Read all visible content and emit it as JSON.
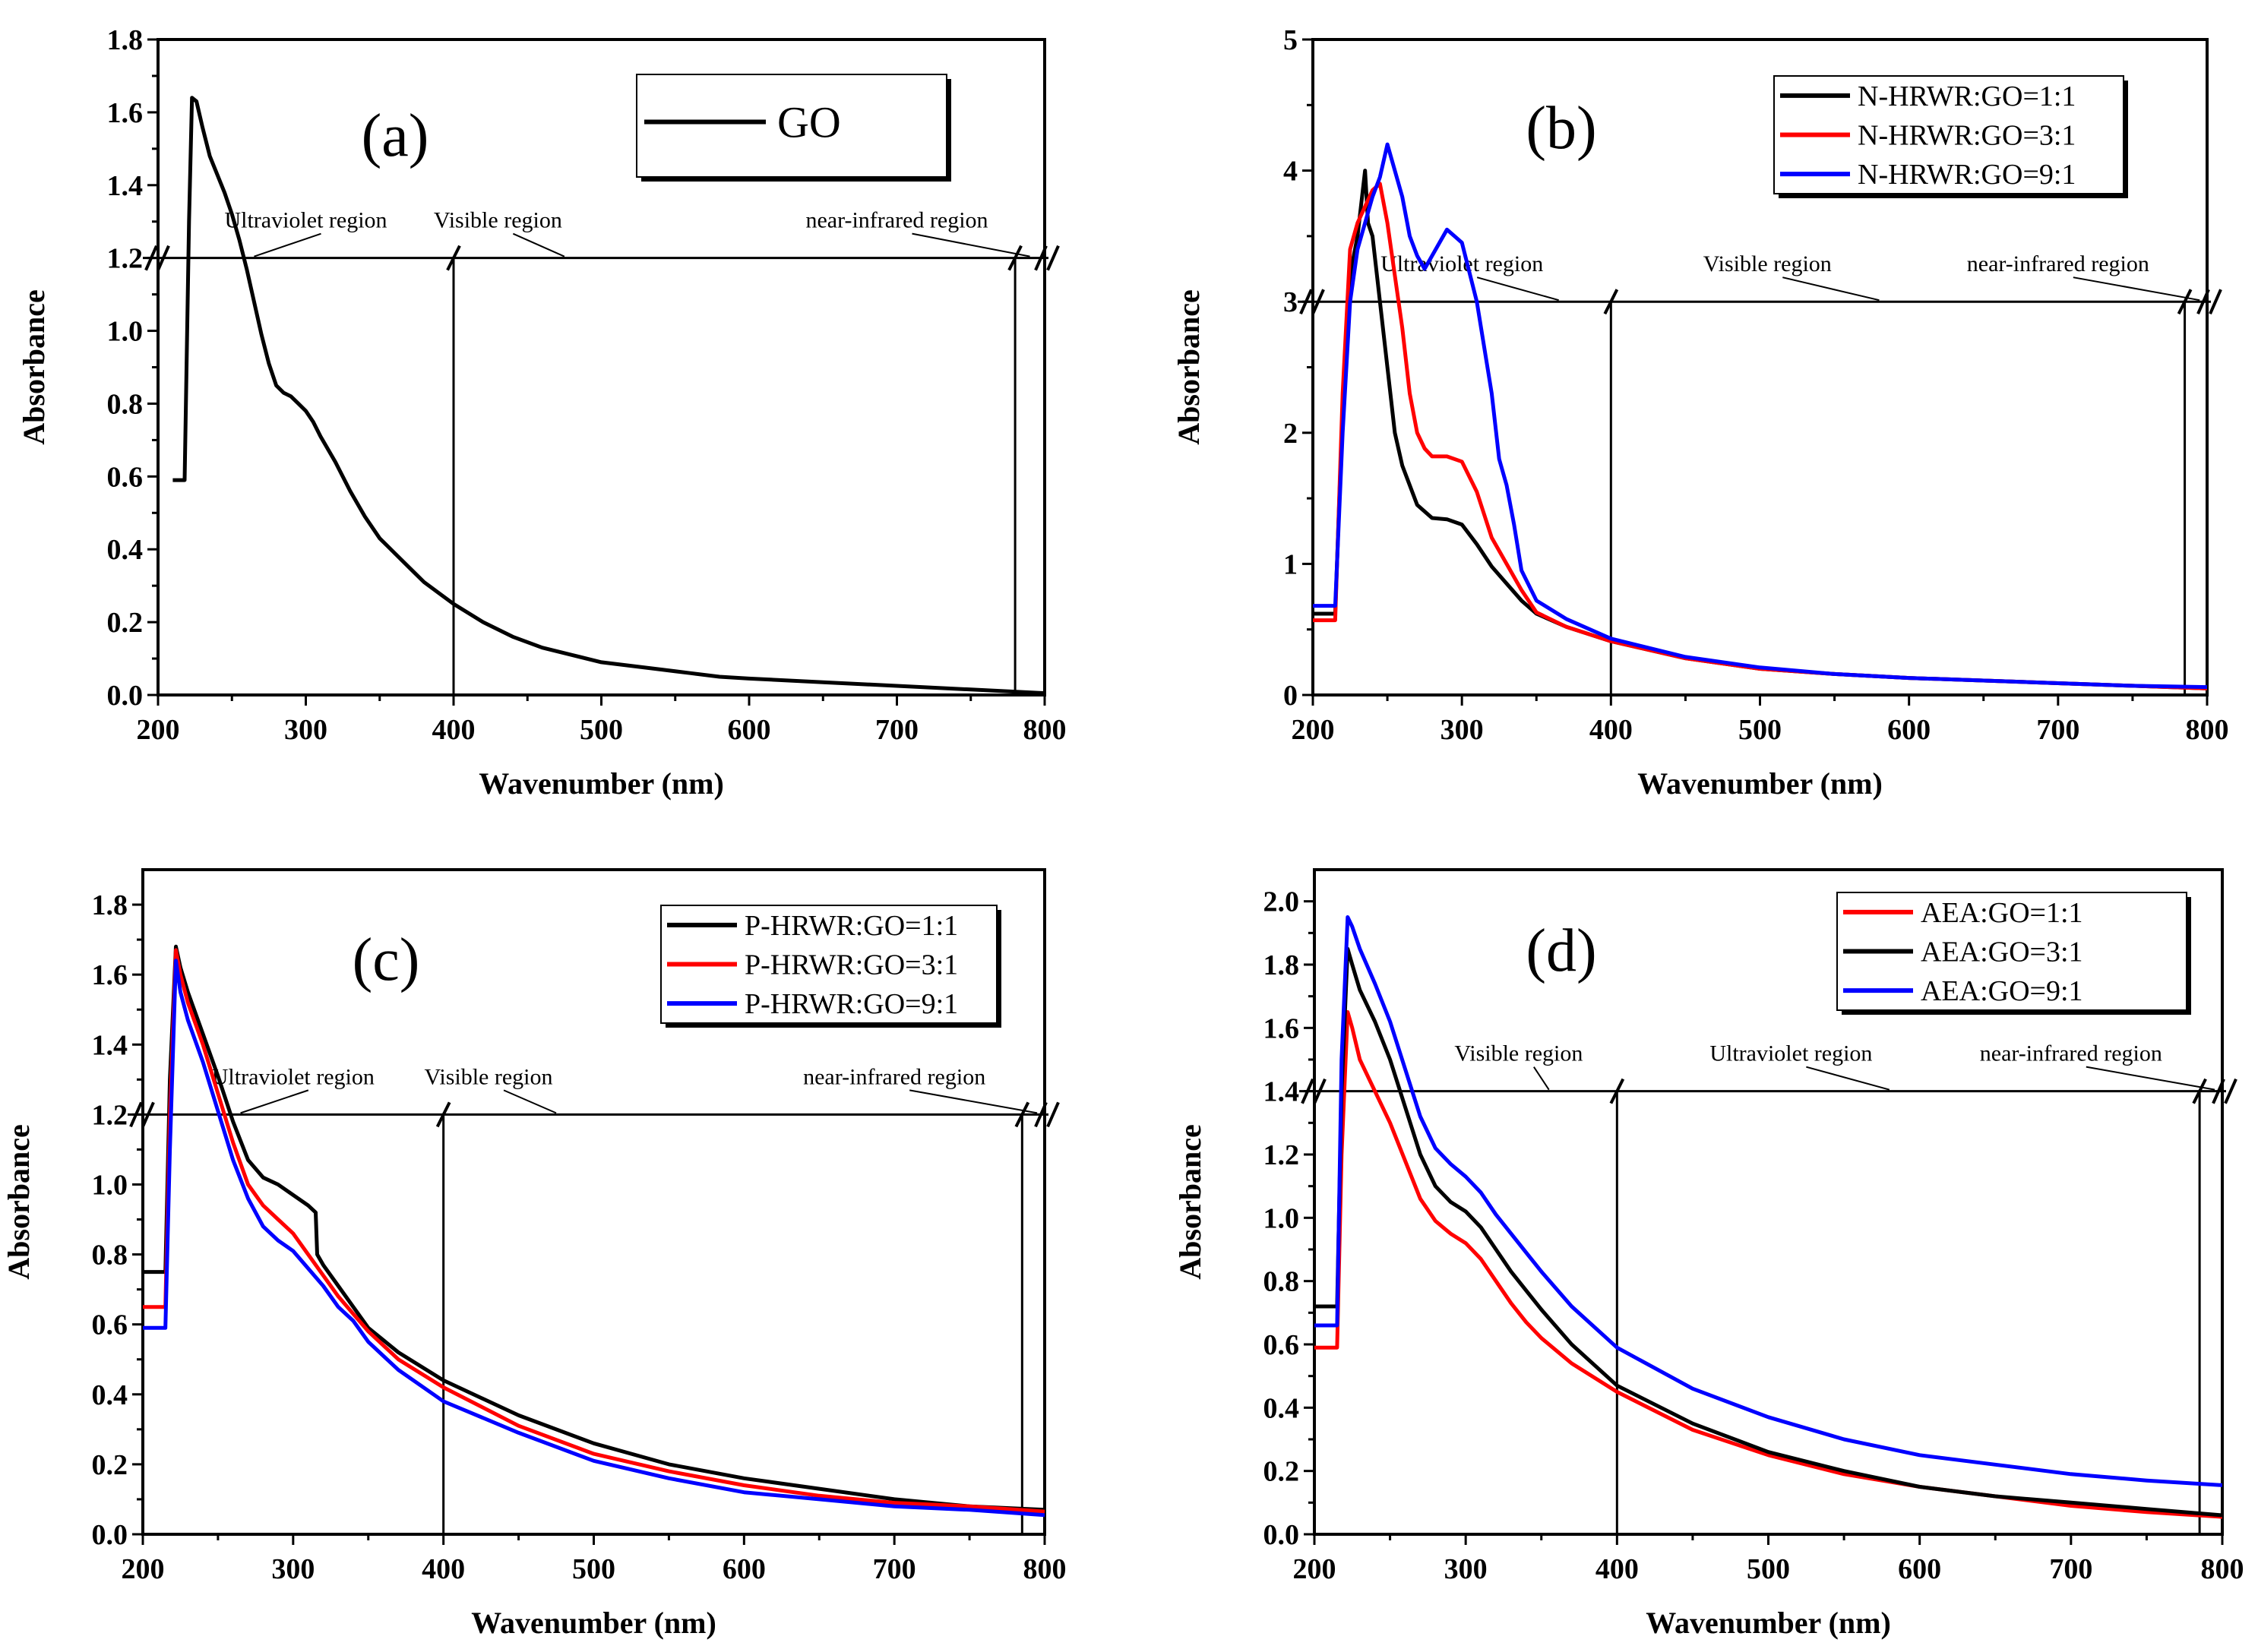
{
  "chart_data": [
    {
      "panel": "(a)",
      "type": "line",
      "xlabel": "Wavenumber (nm)",
      "ylabel": "Absorbance",
      "xlim": [
        200,
        800
      ],
      "ylim": [
        0,
        1.8
      ],
      "xticks": [
        "200",
        "300",
        "400",
        "500",
        "600",
        "700",
        "800"
      ],
      "yticks": [
        "0.0",
        "0.2",
        "0.4",
        "0.6",
        "0.8",
        "1.0",
        "1.2",
        "1.4",
        "1.6",
        "1.8"
      ],
      "regions": {
        "line_y": 1.2,
        "boundaries": [
          400,
          780
        ],
        "labels": [
          {
            "text": "Ultraviolet region",
            "x": 300,
            "arrow_to": 265
          },
          {
            "text": "Visible region",
            "x": 430,
            "arrow_to": 475
          },
          {
            "text": "near-infrared region",
            "x": 700,
            "arrow_to": 790
          }
        ]
      },
      "legend": {
        "position": "top-right",
        "entries": [
          "GO"
        ]
      },
      "series": [
        {
          "name": "GO",
          "color": "#000000",
          "x": [
            210,
            214,
            214,
            218,
            221,
            223,
            226,
            230,
            235,
            240,
            245,
            250,
            255,
            260,
            265,
            270,
            275,
            280,
            285,
            290,
            295,
            300,
            305,
            310,
            320,
            330,
            340,
            350,
            360,
            370,
            380,
            390,
            400,
            420,
            440,
            460,
            480,
            500,
            520,
            540,
            560,
            580,
            600,
            650,
            700,
            750,
            800
          ],
          "y": [
            0.59,
            0.59,
            0.59,
            0.59,
            1.3,
            1.64,
            1.63,
            1.56,
            1.48,
            1.43,
            1.38,
            1.32,
            1.25,
            1.17,
            1.08,
            0.99,
            0.91,
            0.85,
            0.83,
            0.82,
            0.8,
            0.78,
            0.75,
            0.71,
            0.64,
            0.56,
            0.49,
            0.43,
            0.39,
            0.35,
            0.31,
            0.28,
            0.25,
            0.2,
            0.16,
            0.13,
            0.11,
            0.09,
            0.08,
            0.07,
            0.06,
            0.05,
            0.045,
            0.035,
            0.025,
            0.015,
            0.005
          ]
        }
      ]
    },
    {
      "panel": "(b)",
      "type": "line",
      "xlabel": "Wavenumber (nm)",
      "ylabel": "Absorbance",
      "xlim": [
        200,
        800
      ],
      "ylim": [
        0,
        5
      ],
      "xticks": [
        "200",
        "300",
        "400",
        "500",
        "600",
        "700",
        "800"
      ],
      "yticks": [
        "0",
        "1",
        "2",
        "3",
        "4",
        "5"
      ],
      "regions": {
        "line_y": 3.0,
        "boundaries": [
          400,
          785
        ],
        "labels": [
          {
            "text": "Ultraviolet region",
            "x": 300,
            "arrow_to": 365
          },
          {
            "text": "Visible region",
            "x": 505,
            "arrow_to": 580
          },
          {
            "text": "near-infrared region",
            "x": 700,
            "arrow_to": 795
          }
        ]
      },
      "legend": {
        "position": "top-right",
        "entries": [
          "N-HRWR:GO=1:1",
          "N-HRWR:GO=3:1",
          "N-HRWR:GO=9:1"
        ]
      },
      "series": [
        {
          "name": "N-HRWR:GO=1:1",
          "color": "#000000",
          "x": [
            200,
            215,
            215,
            220,
            225,
            230,
            235,
            237,
            240,
            245,
            250,
            255,
            260,
            270,
            280,
            290,
            300,
            310,
            320,
            330,
            340,
            350,
            370,
            400,
            450,
            500,
            550,
            600,
            650,
            700,
            750,
            800
          ],
          "y": [
            0.62,
            0.62,
            0.62,
            2.2,
            3.2,
            3.5,
            4.0,
            3.6,
            3.5,
            3.0,
            2.5,
            2.0,
            1.75,
            1.45,
            1.35,
            1.34,
            1.3,
            1.15,
            0.98,
            0.85,
            0.72,
            0.62,
            0.52,
            0.41,
            0.28,
            0.2,
            0.16,
            0.13,
            0.11,
            0.09,
            0.07,
            0.05
          ]
        },
        {
          "name": "N-HRWR:GO=3:1",
          "color": "#ff0000",
          "x": [
            200,
            215,
            215,
            220,
            225,
            230,
            240,
            245,
            250,
            255,
            260,
            265,
            270,
            275,
            280,
            290,
            300,
            310,
            320,
            330,
            340,
            350,
            370,
            400,
            450,
            500,
            550,
            600,
            650,
            700,
            750,
            800
          ],
          "y": [
            0.57,
            0.57,
            0.57,
            2.3,
            3.4,
            3.6,
            3.85,
            3.9,
            3.6,
            3.2,
            2.8,
            2.3,
            2.0,
            1.88,
            1.82,
            1.82,
            1.78,
            1.55,
            1.2,
            1.0,
            0.8,
            0.63,
            0.52,
            0.41,
            0.28,
            0.2,
            0.16,
            0.13,
            0.11,
            0.09,
            0.07,
            0.05
          ]
        },
        {
          "name": "N-HRWR:GO=9:1",
          "color": "#0000ff",
          "x": [
            200,
            215,
            215,
            220,
            225,
            230,
            240,
            245,
            250,
            255,
            260,
            265,
            270,
            275,
            280,
            285,
            290,
            295,
            300,
            310,
            320,
            325,
            330,
            335,
            340,
            350,
            370,
            400,
            450,
            500,
            550,
            600,
            650,
            700,
            750,
            800
          ],
          "y": [
            0.68,
            0.68,
            0.68,
            2.0,
            3.0,
            3.4,
            3.8,
            3.95,
            4.2,
            4.0,
            3.8,
            3.5,
            3.35,
            3.25,
            3.35,
            3.45,
            3.55,
            3.5,
            3.45,
            3.0,
            2.3,
            1.8,
            1.6,
            1.3,
            0.95,
            0.72,
            0.58,
            0.43,
            0.29,
            0.21,
            0.16,
            0.13,
            0.11,
            0.09,
            0.07,
            0.06
          ]
        }
      ]
    },
    {
      "panel": "(c)",
      "type": "line",
      "xlabel": "Wavenumber (nm)",
      "ylabel": "Absorbance",
      "xlim": [
        200,
        800
      ],
      "ylim": [
        0,
        1.9
      ],
      "xticks": [
        "200",
        "300",
        "400",
        "500",
        "600",
        "700",
        "800"
      ],
      "yticks": [
        "0.0",
        "0.2",
        "0.4",
        "0.6",
        "0.8",
        "1.0",
        "1.2",
        "1.4",
        "1.6",
        "1.8"
      ],
      "regions": {
        "line_y": 1.2,
        "boundaries": [
          400,
          785
        ],
        "labels": [
          {
            "text": "Ultraviolet region",
            "x": 300,
            "arrow_to": 265
          },
          {
            "text": "Visible region",
            "x": 430,
            "arrow_to": 475
          },
          {
            "text": "near-infrared region",
            "x": 700,
            "arrow_to": 795
          }
        ]
      },
      "legend": {
        "position": "top-right",
        "entries": [
          "P-HRWR:GO=1:1",
          "P-HRWR:GO=3:1",
          "P-HRWR:GO=9:1"
        ]
      },
      "series": [
        {
          "name": "P-HRWR:GO=1:1",
          "color": "#000000",
          "x": [
            200,
            215,
            215,
            218,
            222,
            225,
            230,
            240,
            250,
            260,
            270,
            280,
            290,
            300,
            310,
            315,
            316,
            320,
            330,
            340,
            350,
            370,
            400,
            450,
            500,
            550,
            600,
            650,
            700,
            750,
            800
          ],
          "y": [
            0.75,
            0.75,
            0.75,
            1.3,
            1.68,
            1.62,
            1.55,
            1.43,
            1.31,
            1.18,
            1.07,
            1.02,
            1.0,
            0.97,
            0.94,
            0.92,
            0.8,
            0.77,
            0.71,
            0.65,
            0.59,
            0.52,
            0.44,
            0.34,
            0.26,
            0.2,
            0.16,
            0.13,
            0.1,
            0.08,
            0.07
          ]
        },
        {
          "name": "P-HRWR:GO=3:1",
          "color": "#ff0000",
          "x": [
            200,
            215,
            215,
            218,
            222,
            225,
            230,
            240,
            250,
            260,
            270,
            280,
            290,
            300,
            310,
            320,
            330,
            340,
            350,
            370,
            400,
            450,
            500,
            550,
            600,
            650,
            700,
            750,
            800
          ],
          "y": [
            0.65,
            0.65,
            0.65,
            1.2,
            1.67,
            1.6,
            1.52,
            1.4,
            1.26,
            1.12,
            1.0,
            0.94,
            0.9,
            0.86,
            0.8,
            0.74,
            0.68,
            0.63,
            0.58,
            0.5,
            0.42,
            0.31,
            0.23,
            0.18,
            0.14,
            0.11,
            0.09,
            0.08,
            0.065
          ]
        },
        {
          "name": "P-HRWR:GO=9:1",
          "color": "#0000ff",
          "x": [
            200,
            215,
            215,
            218,
            222,
            225,
            230,
            240,
            250,
            260,
            270,
            280,
            290,
            300,
            310,
            320,
            330,
            340,
            350,
            370,
            400,
            450,
            500,
            550,
            600,
            650,
            700,
            750,
            800
          ],
          "y": [
            0.59,
            0.59,
            0.59,
            1.1,
            1.64,
            1.55,
            1.47,
            1.35,
            1.21,
            1.07,
            0.96,
            0.88,
            0.84,
            0.81,
            0.76,
            0.71,
            0.65,
            0.61,
            0.55,
            0.47,
            0.38,
            0.29,
            0.21,
            0.16,
            0.12,
            0.1,
            0.08,
            0.07,
            0.055
          ]
        }
      ]
    },
    {
      "panel": "(d)",
      "type": "line",
      "xlabel": "Wavenumber (nm)",
      "ylabel": "Absorbance",
      "xlim": [
        200,
        800
      ],
      "ylim": [
        0,
        2.1
      ],
      "xticks": [
        "200",
        "300",
        "400",
        "500",
        "600",
        "700",
        "800"
      ],
      "yticks": [
        "0.0",
        "0.2",
        "0.4",
        "0.6",
        "0.8",
        "1.0",
        "1.2",
        "1.4",
        "1.6",
        "1.8",
        "2.0"
      ],
      "regions": {
        "line_y": 1.4,
        "boundaries": [
          400,
          785
        ],
        "labels": [
          {
            "text": "Visible region",
            "x": 335,
            "arrow_to": 355
          },
          {
            "text": "Ultraviolet region",
            "x": 515,
            "arrow_to": 580
          },
          {
            "text": "near-infrared region",
            "x": 700,
            "arrow_to": 795
          }
        ]
      },
      "legend": {
        "position": "top-right",
        "entries": [
          "AEA:GO=1:1",
          "AEA:GO=3:1",
          "AEA:GO=9:1"
        ]
      },
      "series": [
        {
          "name": "AEA:GO=1:1",
          "color": "#ff0000",
          "x": [
            200,
            215,
            215,
            218,
            222,
            225,
            230,
            240,
            250,
            260,
            270,
            280,
            290,
            300,
            310,
            320,
            330,
            340,
            350,
            370,
            400,
            450,
            500,
            550,
            600,
            650,
            700,
            750,
            800
          ],
          "y": [
            0.59,
            0.59,
            0.59,
            1.2,
            1.65,
            1.6,
            1.5,
            1.4,
            1.3,
            1.18,
            1.06,
            0.99,
            0.95,
            0.92,
            0.87,
            0.8,
            0.73,
            0.67,
            0.62,
            0.54,
            0.45,
            0.33,
            0.25,
            0.19,
            0.15,
            0.12,
            0.09,
            0.07,
            0.055
          ]
        },
        {
          "name": "AEA:GO=3:1",
          "color": "#000000",
          "x": [
            200,
            215,
            215,
            218,
            222,
            225,
            230,
            240,
            250,
            260,
            270,
            280,
            290,
            300,
            310,
            320,
            330,
            340,
            350,
            370,
            400,
            450,
            500,
            550,
            600,
            650,
            700,
            750,
            800
          ],
          "y": [
            0.72,
            0.72,
            0.72,
            1.4,
            1.85,
            1.8,
            1.72,
            1.62,
            1.5,
            1.35,
            1.2,
            1.1,
            1.05,
            1.02,
            0.97,
            0.9,
            0.83,
            0.77,
            0.71,
            0.6,
            0.47,
            0.35,
            0.26,
            0.2,
            0.15,
            0.12,
            0.1,
            0.08,
            0.06
          ]
        },
        {
          "name": "AEA:GO=9:1",
          "color": "#0000ff",
          "x": [
            200,
            215,
            215,
            218,
            222,
            225,
            230,
            240,
            250,
            260,
            270,
            280,
            290,
            300,
            310,
            320,
            330,
            340,
            350,
            370,
            400,
            450,
            500,
            550,
            600,
            650,
            700,
            750,
            800
          ],
          "y": [
            0.66,
            0.66,
            0.66,
            1.5,
            1.95,
            1.92,
            1.85,
            1.74,
            1.62,
            1.47,
            1.32,
            1.22,
            1.17,
            1.13,
            1.08,
            1.01,
            0.95,
            0.89,
            0.83,
            0.72,
            0.59,
            0.46,
            0.37,
            0.3,
            0.25,
            0.22,
            0.19,
            0.17,
            0.155
          ]
        }
      ]
    }
  ]
}
